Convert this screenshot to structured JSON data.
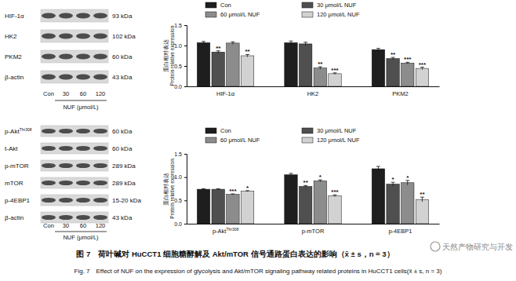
{
  "chart_data": [
    {
      "type": "bar",
      "categories": [
        "HIF-1α",
        "HK2",
        "PKM2"
      ],
      "ylabel_cn": "蛋白相对表达",
      "ylabel": "Protein relative expression",
      "ylim": [
        0,
        1.5
      ],
      "yticks": [
        {
          "value": 0,
          "label": "0.0"
        },
        {
          "value": 0.5,
          "label": "0.5"
        },
        {
          "value": 1,
          "label": "1.0"
        },
        {
          "value": 1.5,
          "label": "1.5"
        }
      ],
      "legend": "top",
      "series": [
        {
          "name": "Con",
          "color": "#1e1e1e",
          "values": [
            1.07,
            1.07,
            0.9
          ],
          "errors": [
            0.03,
            0.04,
            0.03
          ],
          "significance": [
            null,
            null,
            null
          ]
        },
        {
          "name": "30 μmol/L NUF",
          "color": "#4f4f4f",
          "values": [
            0.84,
            1.04,
            0.68
          ],
          "errors": [
            0.03,
            0.04,
            0.03
          ],
          "significance": [
            "**",
            null,
            "**"
          ]
        },
        {
          "name": "60 μmol/L NUF",
          "color": "#8c8c8c",
          "values": [
            1.06,
            0.45,
            0.57
          ],
          "errors": [
            0.03,
            0.03,
            0.02
          ],
          "significance": [
            null,
            "**",
            "***"
          ]
        },
        {
          "name": "120 μmol/L NUF",
          "color": "#d2d2d2",
          "values": [
            0.75,
            0.31,
            0.44
          ],
          "errors": [
            0.03,
            0.02,
            0.03
          ],
          "significance": [
            "**",
            "***",
            "***"
          ]
        }
      ]
    },
    {
      "type": "bar",
      "categories": [
        "p-Akt",
        "p-mTOR",
        "p-4EBP1"
      ],
      "category_superscripts": [
        "Thr308",
        null,
        null
      ],
      "ylabel_cn": "蛋白相对表达",
      "ylabel": "Protein relative expression",
      "ylim": [
        0,
        1.5
      ],
      "yticks": [
        {
          "value": 0,
          "label": "0.0"
        },
        {
          "value": 0.5,
          "label": "0.5"
        },
        {
          "value": 1,
          "label": "1.0"
        },
        {
          "value": 1.5,
          "label": "1.5"
        }
      ],
      "legend": "top",
      "series": [
        {
          "name": "Con",
          "color": "#1e1e1e",
          "values": [
            0.74,
            1.05,
            1.18
          ],
          "errors": [
            0.01,
            0.03,
            0.05
          ],
          "significance": [
            null,
            null,
            null
          ]
        },
        {
          "name": "30 μmol/L NUF",
          "color": "#4f4f4f",
          "values": [
            0.74,
            0.8,
            0.85
          ],
          "errors": [
            0.01,
            0.02,
            0.04
          ],
          "significance": [
            null,
            "**",
            "*"
          ]
        },
        {
          "name": "60 μmol/L NUF",
          "color": "#8c8c8c",
          "values": [
            0.63,
            0.92,
            0.88
          ],
          "errors": [
            0.01,
            0.02,
            0.05
          ],
          "significance": [
            "***",
            "*",
            "*"
          ]
        },
        {
          "name": "120 μmol/L NUF",
          "color": "#d2d2d2",
          "values": [
            0.7,
            0.6,
            0.52
          ],
          "errors": [
            0.01,
            0.02,
            0.05
          ],
          "significance": [
            "*",
            "***",
            "**"
          ]
        }
      ]
    }
  ],
  "blots": [
    {
      "proteins": [
        {
          "name": "HIF-1α",
          "superscript": null,
          "size": "93 kDa"
        },
        {
          "name": "HK2",
          "superscript": null,
          "size": "102 kDa"
        },
        {
          "name": "PKM2",
          "superscript": null,
          "size": "60 kDa"
        },
        {
          "name": "β-actin",
          "superscript": null,
          "size": "43 kDa"
        }
      ],
      "lanes": [
        "Con",
        "30",
        "60",
        "120"
      ],
      "treatment": "NUF (μmol/L)"
    },
    {
      "proteins": [
        {
          "name": "p-Akt",
          "superscript": "Thr308",
          "size": "60 kDa"
        },
        {
          "name": "t-Akt",
          "superscript": null,
          "size": "60 kDa"
        },
        {
          "name": "p-mTOR",
          "superscript": null,
          "size": "289 kDa"
        },
        {
          "name": "mTOR",
          "superscript": null,
          "size": "289 kDa"
        },
        {
          "name": "p-4EBP1",
          "superscript": null,
          "size": "15-20 kDa"
        },
        {
          "name": "β-actin",
          "superscript": null,
          "size": "43 kDa"
        }
      ],
      "lanes": [
        "Con",
        "30",
        "60",
        "120"
      ],
      "treatment": "NUF (μmol/L)"
    }
  ],
  "caption": {
    "cn": "图 7　荷叶碱对 HuCCT1 细胞糖酵解及 Akt/mTOR 信号通路蛋白表达的影响（x̄ ± s，n = 3）",
    "en": "Fig. 7　Effect of NUF on the expression of glycolysis and Akt/mTOR signaling pathway related proteins in HuCCT1 cells(x̄ ± s, n = 3)"
  },
  "watermark": "天然产物研究与开发"
}
